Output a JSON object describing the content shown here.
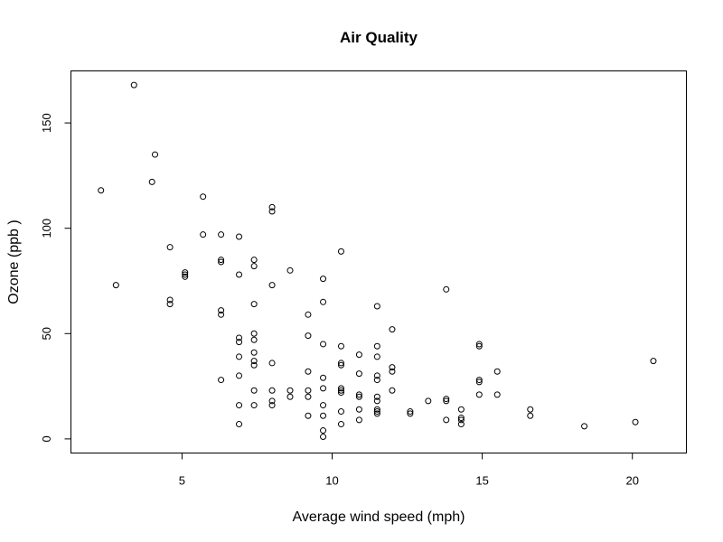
{
  "chart_data": {
    "type": "scatter",
    "title": "Air Quality",
    "xlabel": "Average wind speed (mph)",
    "ylabel": "Ozone (ppb )",
    "xlim": [
      1.3,
      21.8
    ],
    "ylim": [
      -6.7,
      174.7
    ],
    "xticks": [
      5,
      10,
      15,
      20
    ],
    "yticks": [
      0,
      50,
      100,
      150
    ],
    "grid": false,
    "legend": "none",
    "point_style": "open-circle",
    "point_color": "#000000",
    "points": [
      [
        2.3,
        118
      ],
      [
        2.8,
        73
      ],
      [
        3.4,
        168
      ],
      [
        4.0,
        122
      ],
      [
        4.1,
        135
      ],
      [
        4.6,
        91
      ],
      [
        4.6,
        66
      ],
      [
        4.6,
        64
      ],
      [
        5.1,
        79
      ],
      [
        5.1,
        77
      ],
      [
        5.1,
        78
      ],
      [
        5.7,
        115
      ],
      [
        5.7,
        97
      ],
      [
        6.3,
        97
      ],
      [
        6.3,
        85
      ],
      [
        6.3,
        84
      ],
      [
        6.3,
        61
      ],
      [
        6.3,
        59
      ],
      [
        6.3,
        28
      ],
      [
        6.9,
        96
      ],
      [
        6.9,
        78
      ],
      [
        6.9,
        48
      ],
      [
        6.9,
        46
      ],
      [
        6.9,
        39
      ],
      [
        6.9,
        30
      ],
      [
        6.9,
        16
      ],
      [
        6.9,
        7
      ],
      [
        7.4,
        85
      ],
      [
        7.4,
        82
      ],
      [
        7.4,
        64
      ],
      [
        7.4,
        50
      ],
      [
        7.4,
        47
      ],
      [
        7.4,
        41
      ],
      [
        7.4,
        37
      ],
      [
        7.4,
        35
      ],
      [
        7.4,
        23
      ],
      [
        7.4,
        16
      ],
      [
        8.0,
        110
      ],
      [
        8.0,
        108
      ],
      [
        8.0,
        73
      ],
      [
        8.0,
        36
      ],
      [
        8.0,
        23
      ],
      [
        8.0,
        18
      ],
      [
        8.0,
        16
      ],
      [
        8.6,
        80
      ],
      [
        8.6,
        23
      ],
      [
        8.6,
        20
      ],
      [
        9.2,
        59
      ],
      [
        9.2,
        49
      ],
      [
        9.2,
        32
      ],
      [
        9.2,
        23
      ],
      [
        9.2,
        20
      ],
      [
        9.2,
        11
      ],
      [
        9.7,
        76
      ],
      [
        9.7,
        65
      ],
      [
        9.7,
        45
      ],
      [
        9.7,
        29
      ],
      [
        9.7,
        24
      ],
      [
        9.7,
        16
      ],
      [
        9.7,
        11
      ],
      [
        9.7,
        4
      ],
      [
        9.7,
        1
      ],
      [
        10.3,
        89
      ],
      [
        10.3,
        44
      ],
      [
        10.3,
        36
      ],
      [
        10.3,
        35
      ],
      [
        10.3,
        24
      ],
      [
        10.3,
        23
      ],
      [
        10.3,
        22
      ],
      [
        10.3,
        13
      ],
      [
        10.3,
        7
      ],
      [
        10.9,
        40
      ],
      [
        10.9,
        31
      ],
      [
        10.9,
        21
      ],
      [
        10.9,
        20
      ],
      [
        10.9,
        14
      ],
      [
        10.9,
        9
      ],
      [
        11.5,
        63
      ],
      [
        11.5,
        44
      ],
      [
        11.5,
        39
      ],
      [
        11.5,
        30
      ],
      [
        11.5,
        28
      ],
      [
        11.5,
        20
      ],
      [
        11.5,
        18
      ],
      [
        11.5,
        14
      ],
      [
        11.5,
        13
      ],
      [
        11.5,
        12
      ],
      [
        12.0,
        52
      ],
      [
        12.0,
        34
      ],
      [
        12.0,
        32
      ],
      [
        12.0,
        23
      ],
      [
        12.6,
        13
      ],
      [
        12.6,
        12
      ],
      [
        13.2,
        18
      ],
      [
        13.8,
        71
      ],
      [
        13.8,
        19
      ],
      [
        13.8,
        18
      ],
      [
        13.8,
        9
      ],
      [
        14.3,
        14
      ],
      [
        14.3,
        10
      ],
      [
        14.3,
        9
      ],
      [
        14.3,
        7
      ],
      [
        14.9,
        45
      ],
      [
        14.9,
        44
      ],
      [
        14.9,
        28
      ],
      [
        14.9,
        27
      ],
      [
        14.9,
        21
      ],
      [
        15.5,
        32
      ],
      [
        15.5,
        21
      ],
      [
        16.6,
        14
      ],
      [
        16.6,
        11
      ],
      [
        18.4,
        6
      ],
      [
        20.1,
        8
      ],
      [
        20.7,
        37
      ]
    ]
  }
}
